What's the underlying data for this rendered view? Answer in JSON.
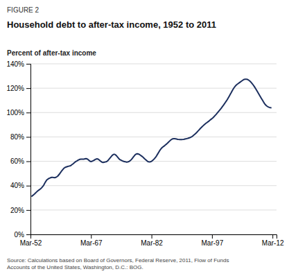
{
  "chart_data": {
    "type": "line",
    "title": "Household debt to after-tax income, 1952 to 2011",
    "ylabel": "Percent of after-tax income",
    "annotations": [
      "FIGURE 2",
      "Source: Calculations based on Board of Governors, Federal Reserve, 2011, Flow of Funds\nAccounts of the United States, Washington, D.C.: BOG."
    ],
    "color": "#1c2f5e",
    "grid": true,
    "xlim": [
      1952,
      2013
    ],
    "xticks": [
      {
        "value": 1952,
        "label": "Mar-52"
      },
      {
        "value": 1967,
        "label": "Mar-67"
      },
      {
        "value": 1982,
        "label": "Mar-82"
      },
      {
        "value": 1997,
        "label": "Mar-97"
      },
      {
        "value": 2012,
        "label": "Mar-12"
      }
    ],
    "ylim": [
      0,
      1.4
    ],
    "yticks": [
      {
        "value": 0,
        "label": "0%"
      },
      {
        "value": 0.2,
        "label": "20%"
      },
      {
        "value": 0.4,
        "label": "40%"
      },
      {
        "value": 0.6,
        "label": "60%"
      },
      {
        "value": 0.8,
        "label": "80%"
      },
      {
        "value": 1.0,
        "label": "100%"
      },
      {
        "value": 1.2,
        "label": "120%"
      },
      {
        "value": 1.4,
        "label": "140%"
      }
    ],
    "x": [
      1952.25,
      1952.5,
      1952.75,
      1953.0,
      1953.25,
      1953.5,
      1953.75,
      1954.0,
      1954.25,
      1954.5,
      1954.75,
      1955.0,
      1955.25,
      1955.5,
      1955.75,
      1956.0,
      1956.25,
      1956.5,
      1956.75,
      1957.0,
      1957.25,
      1957.5,
      1957.75,
      1958.0,
      1958.25,
      1958.5,
      1958.75,
      1959.0,
      1959.25,
      1959.5,
      1959.75,
      1960.0,
      1960.25,
      1960.5,
      1960.75,
      1961.0,
      1961.25,
      1961.5,
      1961.75,
      1962.0,
      1962.25,
      1962.5,
      1962.75,
      1963.0,
      1963.25,
      1963.5,
      1963.75,
      1964.0,
      1964.25,
      1964.5,
      1964.75,
      1965.0,
      1965.25,
      1965.5,
      1965.75,
      1966.0,
      1966.25,
      1966.5,
      1966.75,
      1967.0,
      1967.25,
      1967.5,
      1967.75,
      1968.0,
      1968.25,
      1968.5,
      1968.75,
      1969.0,
      1969.25,
      1969.5,
      1969.75,
      1970.0,
      1970.25,
      1970.5,
      1970.75,
      1971.0,
      1971.25,
      1971.5,
      1971.75,
      1972.0,
      1972.25,
      1972.5,
      1972.75,
      1973.0,
      1973.25,
      1973.5,
      1973.75,
      1974.0,
      1974.25,
      1974.5,
      1974.75,
      1975.0,
      1975.25,
      1975.5,
      1975.75,
      1976.0,
      1976.25,
      1976.5,
      1976.75,
      1977.0,
      1977.25,
      1977.5,
      1977.75,
      1978.0,
      1978.25,
      1978.5,
      1978.75,
      1979.0,
      1979.25,
      1979.5,
      1979.75,
      1980.0,
      1980.25,
      1980.5,
      1980.75,
      1981.0,
      1981.25,
      1981.5,
      1981.75,
      1982.0,
      1982.25,
      1982.5,
      1982.75,
      1983.0,
      1983.25,
      1983.5,
      1983.75,
      1984.0,
      1984.25,
      1984.5,
      1984.75,
      1985.0,
      1985.25,
      1985.5,
      1985.75,
      1986.0,
      1986.25,
      1986.5,
      1986.75,
      1987.0,
      1987.25,
      1987.5,
      1987.75,
      1988.0,
      1988.25,
      1988.5,
      1988.75,
      1989.0,
      1989.25,
      1989.5,
      1989.75,
      1990.0,
      1990.25,
      1990.5,
      1990.75,
      1991.0,
      1991.25,
      1991.5,
      1991.75,
      1992.0,
      1992.25,
      1992.5,
      1992.75,
      1993.0,
      1993.25,
      1993.5,
      1993.75,
      1994.0,
      1994.25,
      1994.5,
      1994.75,
      1995.0,
      1995.25,
      1995.5,
      1995.75,
      1996.0,
      1996.25,
      1996.5,
      1996.75,
      1997.0,
      1997.25,
      1997.5,
      1997.75,
      1998.0,
      1998.25,
      1998.5,
      1998.75,
      1999.0,
      1999.25,
      1999.5,
      1999.75,
      2000.0,
      2000.25,
      2000.5,
      2000.75,
      2001.0,
      2001.25,
      2001.5,
      2001.75,
      2002.0,
      2002.25,
      2002.5,
      2002.75,
      2003.0,
      2003.25,
      2003.5,
      2003.75,
      2004.0,
      2004.25,
      2004.5,
      2004.75,
      2005.0,
      2005.25,
      2005.5,
      2005.75,
      2006.0,
      2006.25,
      2006.5,
      2006.75,
      2007.0,
      2007.25,
      2007.5,
      2007.75,
      2008.0,
      2008.25,
      2008.5,
      2008.75,
      2009.0,
      2009.25,
      2009.5,
      2009.75,
      2010.0,
      2010.25,
      2010.5,
      2010.75,
      2011.0,
      2011.25,
      2011.5,
      2011.75
    ],
    "values": [
      0.31,
      0.318,
      0.325,
      0.332,
      0.34,
      0.348,
      0.356,
      0.362,
      0.368,
      0.374,
      0.382,
      0.392,
      0.402,
      0.418,
      0.432,
      0.445,
      0.452,
      0.458,
      0.462,
      0.465,
      0.468,
      0.468,
      0.466,
      0.465,
      0.468,
      0.472,
      0.478,
      0.488,
      0.498,
      0.51,
      0.522,
      0.532,
      0.542,
      0.548,
      0.552,
      0.555,
      0.558,
      0.56,
      0.562,
      0.565,
      0.572,
      0.578,
      0.585,
      0.592,
      0.598,
      0.602,
      0.608,
      0.612,
      0.616,
      0.618,
      0.618,
      0.618,
      0.618,
      0.62,
      0.622,
      0.62,
      0.615,
      0.608,
      0.6,
      0.598,
      0.6,
      0.604,
      0.608,
      0.614,
      0.618,
      0.62,
      0.618,
      0.612,
      0.605,
      0.598,
      0.592,
      0.59,
      0.592,
      0.594,
      0.596,
      0.6,
      0.608,
      0.618,
      0.628,
      0.638,
      0.648,
      0.655,
      0.658,
      0.655,
      0.648,
      0.638,
      0.628,
      0.618,
      0.612,
      0.608,
      0.604,
      0.6,
      0.598,
      0.596,
      0.594,
      0.594,
      0.596,
      0.6,
      0.606,
      0.614,
      0.624,
      0.635,
      0.645,
      0.655,
      0.66,
      0.662,
      0.66,
      0.656,
      0.65,
      0.644,
      0.638,
      0.63,
      0.622,
      0.615,
      0.608,
      0.6,
      0.596,
      0.595,
      0.596,
      0.6,
      0.606,
      0.614,
      0.622,
      0.632,
      0.644,
      0.658,
      0.672,
      0.686,
      0.698,
      0.708,
      0.716,
      0.722,
      0.728,
      0.735,
      0.742,
      0.75,
      0.758,
      0.766,
      0.774,
      0.78,
      0.784,
      0.786,
      0.786,
      0.784,
      0.782,
      0.78,
      0.779,
      0.778,
      0.778,
      0.778,
      0.779,
      0.78,
      0.782,
      0.784,
      0.786,
      0.788,
      0.791,
      0.794,
      0.798,
      0.802,
      0.808,
      0.815,
      0.822,
      0.83,
      0.838,
      0.847,
      0.856,
      0.865,
      0.874,
      0.882,
      0.89,
      0.898,
      0.905,
      0.912,
      0.918,
      0.924,
      0.93,
      0.937,
      0.944,
      0.951,
      0.958,
      0.966,
      0.975,
      0.984,
      0.994,
      1.004,
      1.014,
      1.024,
      1.034,
      1.045,
      1.056,
      1.068,
      1.08,
      1.092,
      1.104,
      1.118,
      1.132,
      1.148,
      1.162,
      1.178,
      1.192,
      1.205,
      1.216,
      1.225,
      1.232,
      1.238,
      1.244,
      1.25,
      1.256,
      1.262,
      1.268,
      1.272,
      1.274,
      1.274,
      1.272,
      1.268,
      1.262,
      1.255,
      1.246,
      1.236,
      1.225,
      1.213,
      1.2,
      1.186,
      1.172,
      1.158,
      1.144,
      1.13,
      1.116,
      1.102,
      1.088,
      1.075,
      1.064,
      1.056,
      1.05,
      1.045,
      1.042,
      1.04,
      1.038
    ]
  }
}
